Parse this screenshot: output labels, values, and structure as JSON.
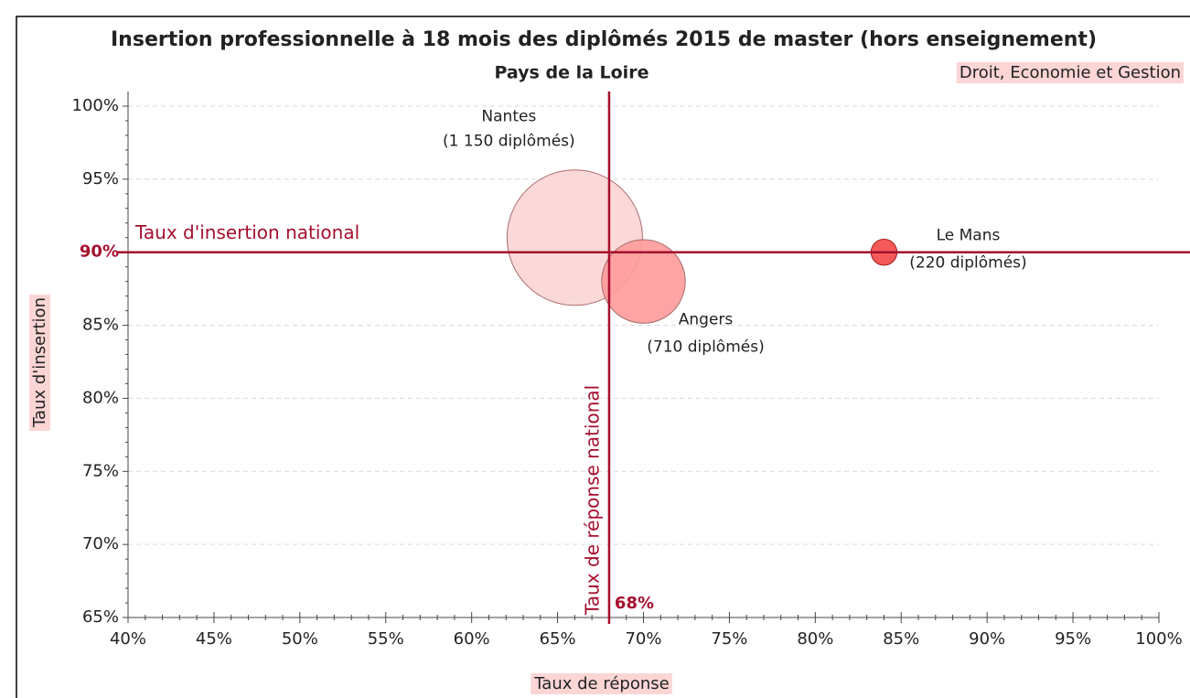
{
  "chart_data": {
    "type": "bubble",
    "title": "Insertion professionnelle à 18 mois des diplômés 2015 de master (hors enseignement)",
    "subtitle": "Pays de la Loire",
    "annotation": "Droit, Economie et Gestion",
    "x_label": "Taux de réponse",
    "y_label": "Taux d'insertion",
    "points": [
      {
        "name": "Nantes",
        "x": 66,
        "y": 91,
        "size": 1150,
        "size_label": "(1 150 diplômés)",
        "color": "#fcd5d5",
        "stroke": "#a86a6a"
      },
      {
        "name": "Angers",
        "x": 70,
        "y": 88,
        "size": 710,
        "size_label": "(710 diplômés)",
        "color": "#ff9a9a",
        "stroke": "#a86a6a"
      },
      {
        "name": "Le Mans",
        "x": 84,
        "y": 90,
        "size": 220,
        "size_label": "(220 diplômés)",
        "color": "#f44848",
        "stroke": "#a01818"
      }
    ],
    "reference_lines": [
      {
        "axis": "y",
        "value": 90,
        "label": "Taux d'insertion national"
      },
      {
        "axis": "x",
        "value": 68,
        "label": "Taux de réponse national",
        "value_label": "68%"
      }
    ],
    "reference_color": "#a50f2d",
    "xlim": [
      40,
      100
    ],
    "xticks": [
      {
        "value": 40,
        "label": "40%"
      },
      {
        "value": 45,
        "label": "45%"
      },
      {
        "value": 50,
        "label": "50%"
      },
      {
        "value": 55,
        "label": "55%"
      },
      {
        "value": 60,
        "label": "60%"
      },
      {
        "value": 65,
        "label": "65%"
      },
      {
        "value": 70,
        "label": "70%"
      },
      {
        "value": 75,
        "label": "75%"
      },
      {
        "value": 80,
        "label": "80%"
      },
      {
        "value": 85,
        "label": "85%"
      },
      {
        "value": 90,
        "label": "90%"
      },
      {
        "value": 95,
        "label": "95%"
      },
      {
        "value": 100,
        "label": "100%"
      }
    ],
    "ylim": [
      65,
      100
    ],
    "yticks": [
      {
        "value": 65,
        "label": "65%"
      },
      {
        "value": 70,
        "label": "70%"
      },
      {
        "value": 75,
        "label": "75%"
      },
      {
        "value": 80,
        "label": "80%"
      },
      {
        "value": 85,
        "label": "85%"
      },
      {
        "value": 90,
        "label": "90%"
      },
      {
        "value": 95,
        "label": "95%"
      },
      {
        "value": 100,
        "label": "100%"
      }
    ],
    "grid": true
  }
}
